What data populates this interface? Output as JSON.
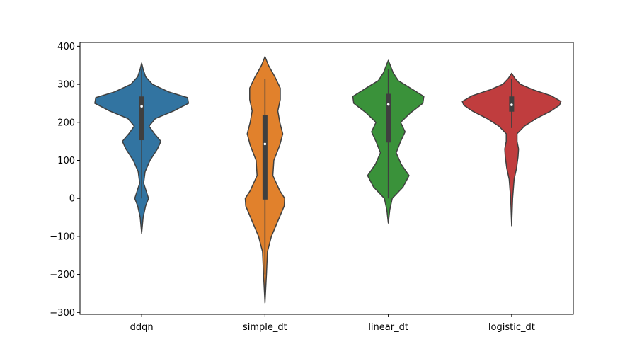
{
  "chart_data": {
    "type": "violin",
    "categories": [
      "ddqn",
      "simple_dt",
      "linear_dt",
      "logistic_dt"
    ],
    "ylim": [
      -305,
      410
    ],
    "yticks": [
      -300,
      -200,
      -100,
      0,
      100,
      200,
      300,
      400
    ],
    "ytick_labels": [
      "−300",
      "−200",
      "−100",
      "0",
      "100",
      "200",
      "300",
      "400"
    ],
    "grid": false,
    "xlabel": "",
    "ylabel": "",
    "title": "",
    "violins": [
      {
        "category": "ddqn",
        "color": "#3274a1",
        "min": -92,
        "max": 356,
        "q1": 153,
        "median": 242,
        "q3": 268,
        "whisker_low": 0,
        "whisker_high": 340,
        "density": [
          [
            -92,
            0
          ],
          [
            -50,
            0.03
          ],
          [
            -20,
            0.08
          ],
          [
            0,
            0.14
          ],
          [
            20,
            0.09
          ],
          [
            40,
            0.04
          ],
          [
            70,
            0.07
          ],
          [
            100,
            0.17
          ],
          [
            130,
            0.32
          ],
          [
            150,
            0.39
          ],
          [
            170,
            0.26
          ],
          [
            190,
            0.15
          ],
          [
            210,
            0.28
          ],
          [
            230,
            0.65
          ],
          [
            250,
            0.95
          ],
          [
            265,
            0.93
          ],
          [
            280,
            0.55
          ],
          [
            300,
            0.22
          ],
          [
            320,
            0.08
          ],
          [
            340,
            0.03
          ],
          [
            356,
            0
          ]
        ]
      },
      {
        "category": "simple_dt",
        "color": "#e1812c",
        "min": -275,
        "max": 373,
        "q1": -3,
        "median": 143,
        "q3": 220,
        "whisker_low": -200,
        "whisker_high": 315,
        "density": [
          [
            -275,
            0
          ],
          [
            -200,
            0.03
          ],
          [
            -140,
            0.05
          ],
          [
            -100,
            0.13
          ],
          [
            -60,
            0.26
          ],
          [
            -20,
            0.39
          ],
          [
            0,
            0.4
          ],
          [
            20,
            0.3
          ],
          [
            60,
            0.16
          ],
          [
            100,
            0.18
          ],
          [
            140,
            0.3
          ],
          [
            170,
            0.36
          ],
          [
            200,
            0.3
          ],
          [
            230,
            0.26
          ],
          [
            260,
            0.31
          ],
          [
            290,
            0.31
          ],
          [
            320,
            0.2
          ],
          [
            350,
            0.07
          ],
          [
            373,
            0
          ]
        ]
      },
      {
        "category": "linear_dt",
        "color": "#3a923a",
        "min": -65,
        "max": 363,
        "q1": 147,
        "median": 247,
        "q3": 275,
        "whisker_low": 0,
        "whisker_high": 340,
        "density": [
          [
            -65,
            0
          ],
          [
            -30,
            0.03
          ],
          [
            0,
            0.08
          ],
          [
            30,
            0.3
          ],
          [
            60,
            0.42
          ],
          [
            90,
            0.26
          ],
          [
            120,
            0.16
          ],
          [
            150,
            0.25
          ],
          [
            175,
            0.34
          ],
          [
            200,
            0.25
          ],
          [
            225,
            0.45
          ],
          [
            250,
            0.7
          ],
          [
            268,
            0.72
          ],
          [
            290,
            0.45
          ],
          [
            310,
            0.2
          ],
          [
            330,
            0.1
          ],
          [
            350,
            0.04
          ],
          [
            363,
            0
          ]
        ]
      },
      {
        "category": "logistic_dt",
        "color": "#c03d3e",
        "min": -72,
        "max": 329,
        "q1": 228,
        "median": 246,
        "q3": 268,
        "whisker_low": 185,
        "whisker_high": 315,
        "density": [
          [
            -72,
            0
          ],
          [
            0,
            0.02
          ],
          [
            50,
            0.05
          ],
          [
            80,
            0.1
          ],
          [
            110,
            0.13
          ],
          [
            130,
            0.14
          ],
          [
            150,
            0.11
          ],
          [
            170,
            0.11
          ],
          [
            190,
            0.26
          ],
          [
            210,
            0.5
          ],
          [
            230,
            0.8
          ],
          [
            245,
            0.97
          ],
          [
            255,
            1.0
          ],
          [
            270,
            0.8
          ],
          [
            285,
            0.45
          ],
          [
            300,
            0.18
          ],
          [
            315,
            0.07
          ],
          [
            329,
            0
          ]
        ]
      }
    ]
  }
}
